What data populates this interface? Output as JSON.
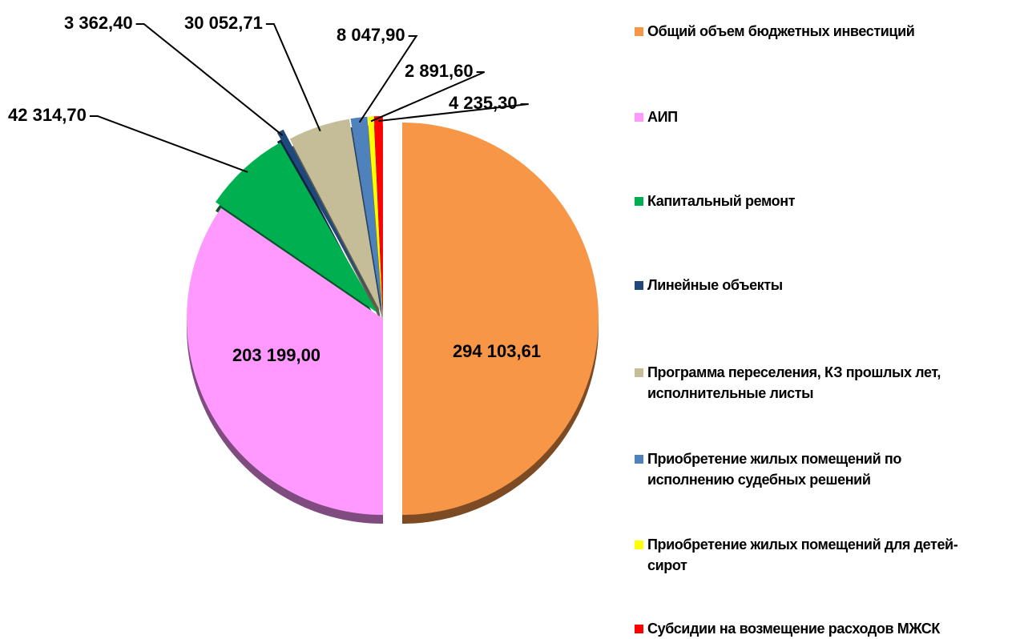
{
  "chart_data": {
    "type": "pie",
    "categories": [
      "Общий объем бюджетных инвестиций",
      "АИП",
      "Капитальный ремонт",
      "Линейные объекты",
      "Программа переселения, КЗ прошлых лет, исполнительные листы",
      "Приобретение жилых помещений по исполнению судебных решений",
      "Приобретение жилых помещений для детей-сирот",
      "Субсидии на возмещение расходов МЖСК"
    ],
    "values": [
      294103.61,
      203199.0,
      42314.7,
      3362.4,
      30052.71,
      8047.9,
      2891.6,
      4235.3
    ],
    "value_labels": [
      "294 103,61",
      "203 199,00",
      "42 314,70",
      "3 362,40",
      "30 052,71",
      "8 047,90",
      "2 891,60",
      "4 235,30"
    ],
    "colors": [
      "#f79646",
      "#ff99ff",
      "#00b050",
      "#1f497d",
      "#c4bd97",
      "#4f81bd",
      "#ffff00",
      "#ff0000"
    ],
    "legend": "right"
  }
}
